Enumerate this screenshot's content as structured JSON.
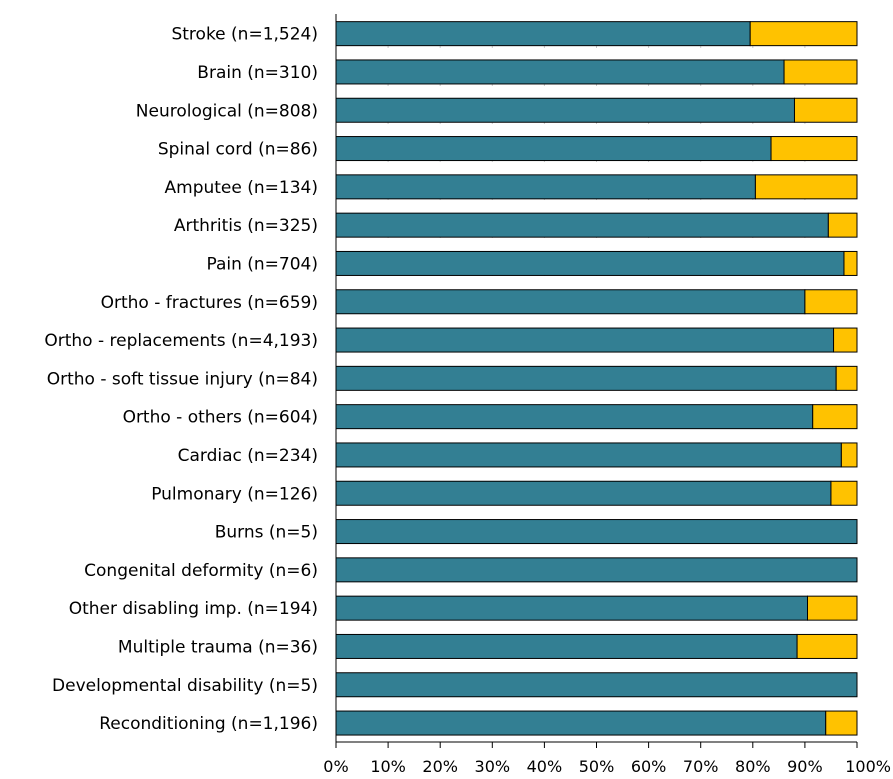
{
  "chart_data": {
    "type": "bar",
    "orientation": "horizontal",
    "stacked": true,
    "percent": true,
    "title": "",
    "xlabel": "",
    "ylabel": "",
    "xlim": [
      0,
      100
    ],
    "grid": false,
    "legend": "none",
    "categories": [
      "Stroke (n=1,524)",
      "Brain (n=310)",
      "Neurological (n=808)",
      "Spinal cord (n=86)",
      "Amputee (n=134)",
      "Arthritis (n=325)",
      "Pain (n=704)",
      "Ortho - fractures (n=659)",
      "Ortho - replacements (n=4,193)",
      "Ortho - soft tissue injury (n=84)",
      "Ortho - others (n=604)",
      "Cardiac (n=234)",
      "Pulmonary (n=126)",
      "Burns (n=5)",
      "Congenital deformity (n=6)",
      "Other disabling imp. (n=194)",
      "Multiple trauma (n=36)",
      "Developmental disability (n=5)",
      "Reconditioning (n=1,196)"
    ],
    "series": [
      {
        "color": "#337f93",
        "values": [
          79.5,
          86,
          88,
          83.5,
          80.5,
          94.5,
          97.5,
          90,
          95.5,
          96,
          91.5,
          97,
          95,
          100,
          100,
          90.5,
          88.5,
          100,
          94
        ]
      },
      {
        "color": "#ffc200",
        "values": [
          20.5,
          14,
          12,
          16.5,
          19.5,
          5.5,
          2.5,
          10,
          4.5,
          4,
          8.5,
          3,
          5,
          0,
          0,
          9.5,
          11.5,
          0,
          6
        ]
      }
    ],
    "ticks": [
      "0%",
      "10%",
      "20%",
      "30%",
      "40%",
      "50%",
      "60%",
      "70%",
      "80%",
      "90%",
      "100%"
    ]
  }
}
